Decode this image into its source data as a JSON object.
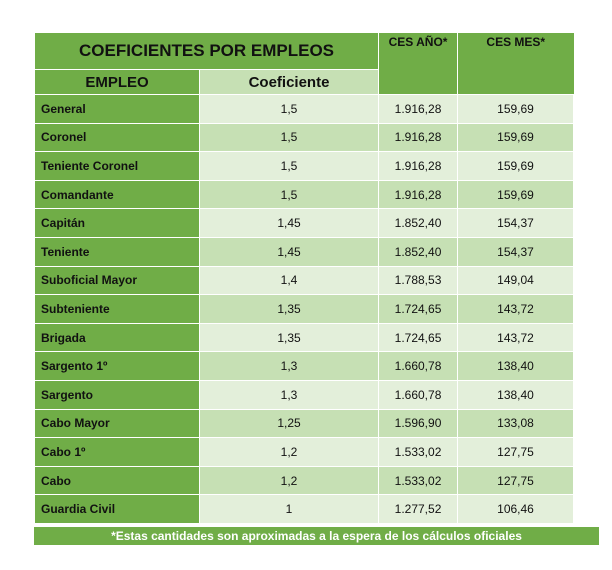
{
  "header": {
    "title": "COEFICIENTES POR EMPLEOS",
    "ces_anio": "CES AÑO*",
    "ces_mes": "CES MES*",
    "empleo": "EMPLEO",
    "coeficiente": "Coeficiente"
  },
  "rows": [
    {
      "empleo": "General",
      "coef": "1,5",
      "anio": "1.916,28",
      "mes": "159,69"
    },
    {
      "empleo": "Coronel",
      "coef": "1,5",
      "anio": "1.916,28",
      "mes": "159,69"
    },
    {
      "empleo": "Teniente Coronel",
      "coef": "1,5",
      "anio": "1.916,28",
      "mes": "159,69"
    },
    {
      "empleo": "Comandante",
      "coef": "1,5",
      "anio": "1.916,28",
      "mes": "159,69"
    },
    {
      "empleo": "Capitán",
      "coef": "1,45",
      "anio": "1.852,40",
      "mes": "154,37"
    },
    {
      "empleo": "Teniente",
      "coef": "1,45",
      "anio": "1.852,40",
      "mes": "154,37"
    },
    {
      "empleo": "Suboficial Mayor",
      "coef": "1,4",
      "anio": "1.788,53",
      "mes": "149,04"
    },
    {
      "empleo": "Subteniente",
      "coef": "1,35",
      "anio": "1.724,65",
      "mes": "143,72"
    },
    {
      "empleo": "Brigada",
      "coef": "1,35",
      "anio": "1.724,65",
      "mes": "143,72"
    },
    {
      "empleo": "Sargento 1º",
      "coef": "1,3",
      "anio": "1.660,78",
      "mes": "138,40"
    },
    {
      "empleo": "Sargento",
      "coef": "1,3",
      "anio": "1.660,78",
      "mes": "138,40"
    },
    {
      "empleo": "Cabo Mayor",
      "coef": "1,25",
      "anio": "1.596,90",
      "mes": "133,08"
    },
    {
      "empleo": "Cabo 1º",
      "coef": "1,2",
      "anio": "1.533,02",
      "mes": "127,75"
    },
    {
      "empleo": "Cabo",
      "coef": "1,2",
      "anio": "1.533,02",
      "mes": "127,75"
    },
    {
      "empleo": "Guardia Civil",
      "coef": "1",
      "anio": "1.277,52",
      "mes": "106,46"
    }
  ],
  "footer": "*Estas cantidades son aproximadas a la espera de los cálculos oficiales",
  "colors": {
    "green": "#70ad47",
    "light": "#e3efda",
    "mid": "#c6e0b4"
  }
}
